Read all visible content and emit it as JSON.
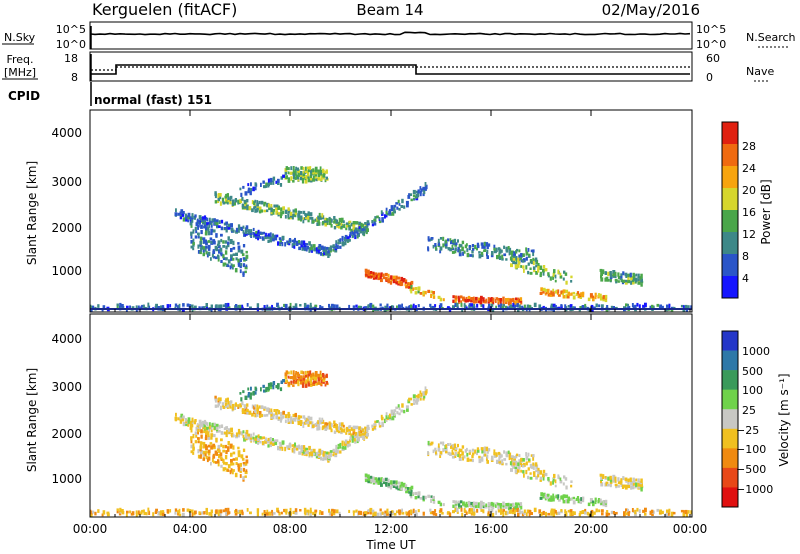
{
  "header": {
    "station": "Kerguelen (fitACF)",
    "beam": "Beam 14",
    "date": "02/May/2016"
  },
  "noise_panel": {
    "left_label": "N.Sky",
    "left_ticks": [
      "10^5",
      "10^0"
    ],
    "right_label": "N.Search",
    "right_ticks": [
      "10^5",
      "10^0"
    ]
  },
  "freq_panel": {
    "left_label_1": "Freq.",
    "left_label_2": "[MHz]",
    "left_ticks": [
      "18",
      "8"
    ],
    "right_label": "Nave",
    "right_ticks": [
      "60",
      "0"
    ]
  },
  "cpid": {
    "label": "CPID",
    "value": "normal (fast) 151"
  },
  "chart_data": [
    {
      "type": "heatmap",
      "title": "",
      "ylabel": "Slant Range [km]",
      "ylim": [
        180,
        4600
      ],
      "yticks": [
        "1000",
        "2000",
        "3000",
        "4000"
      ],
      "xticks": [
        "00:00",
        "04:00",
        "08:00",
        "12:00",
        "16:00",
        "20:00",
        "00:00"
      ],
      "colorbar": {
        "label": "Power [dB]",
        "ticks": [
          "4",
          "8",
          "12",
          "16",
          "20",
          "24",
          "28"
        ],
        "colors": [
          "#1515ff",
          "#2a55c8",
          "#3d8888",
          "#4aa64a",
          "#d6d62c",
          "#f7a40e",
          "#ef6a10",
          "#e02010"
        ]
      }
    },
    {
      "type": "heatmap",
      "title": "",
      "ylabel": "Slant Range [km]",
      "xlabel": "Time UT",
      "ylim": [
        180,
        4600
      ],
      "yticks": [
        "1000",
        "2000",
        "3000",
        "4000"
      ],
      "xticks": [
        "00:00",
        "04:00",
        "08:00",
        "12:00",
        "16:00",
        "20:00",
        "00:00"
      ],
      "colorbar": {
        "label": "Velocity [m s⁻¹]",
        "ticks": [
          "1000",
          "500",
          "100",
          "25",
          "−25",
          "−100",
          "−500",
          "−1000"
        ],
        "colors": [
          "#2436c8",
          "#2e78a8",
          "#3a9a5a",
          "#6fd24a",
          "#c8c8c4",
          "#f0c020",
          "#f08a10",
          "#e84818",
          "#e01010"
        ]
      }
    }
  ]
}
